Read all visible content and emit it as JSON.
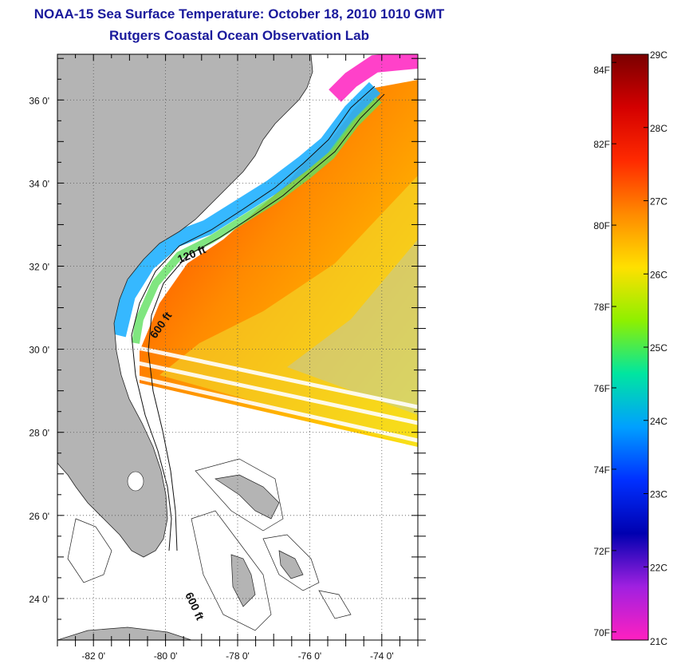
{
  "title": "NOAA-15 Sea Surface Temperature:  October 18, 2010 1010 GMT",
  "subtitle": "Rutgers Coastal Ocean Observation Lab",
  "map": {
    "lat_labels": [
      {
        "value": 36,
        "text": "36 0'"
      },
      {
        "value": 34,
        "text": "34 0'"
      },
      {
        "value": 32,
        "text": "32 0'"
      },
      {
        "value": 30,
        "text": "30 0'"
      },
      {
        "value": 28,
        "text": "28 0'"
      },
      {
        "value": 26,
        "text": "26 0'"
      },
      {
        "value": 24,
        "text": "24 0'"
      }
    ],
    "lon_labels": [
      {
        "value": -82,
        "text": "-82 0'"
      },
      {
        "value": -80,
        "text": "-80 0'"
      },
      {
        "value": -78,
        "text": "-78 0'"
      },
      {
        "value": -76,
        "text": "-76 0'"
      },
      {
        "value": -74,
        "text": "-74 0'"
      }
    ],
    "lat_range": [
      23,
      37.1
    ],
    "lon_range": [
      -83,
      -73
    ],
    "contour_labels": [
      "120 ft",
      "600 ft",
      "600 ft"
    ],
    "land_color": "#b4b4b4"
  },
  "colorbar": {
    "fahrenheit_labels": [
      "84F",
      "82F",
      "80F",
      "78F",
      "76F",
      "74F",
      "72F",
      "70F"
    ],
    "celsius_labels": [
      "29C",
      "28C",
      "27C",
      "26C",
      "25C",
      "24C",
      "23C",
      "22C",
      "21C"
    ],
    "range_celsius": [
      21,
      29
    ],
    "colors_top_to_bottom": [
      "#7a0000",
      "#d40000",
      "#ff2a00",
      "#ff8a00",
      "#ffe000",
      "#8ef000",
      "#00e6a0",
      "#00a0ff",
      "#0030ff",
      "#0000b0",
      "#a020e0",
      "#ff20c0"
    ]
  }
}
